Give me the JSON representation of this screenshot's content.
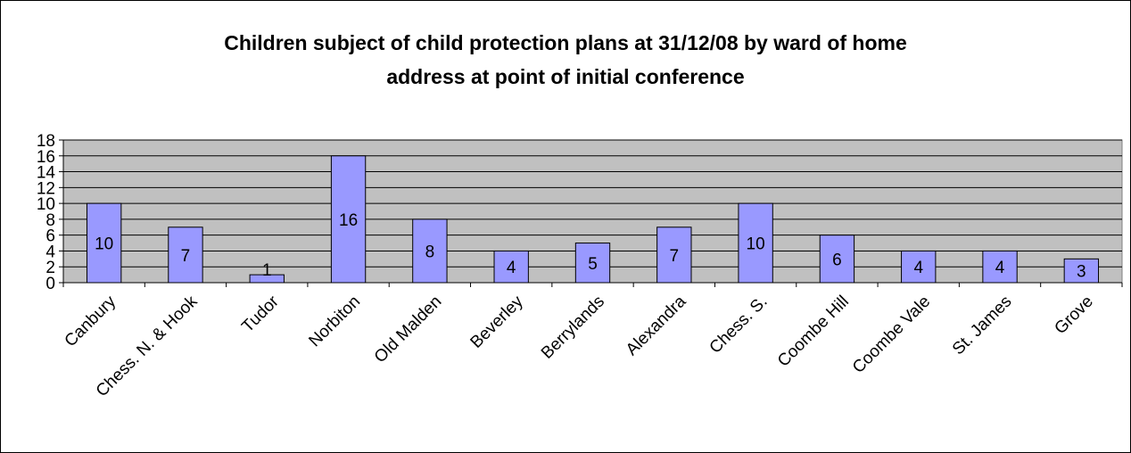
{
  "chart_data": {
    "type": "bar",
    "title_lines": [
      "Children subject of child protection plans at 31/12/08 by ward of home",
      "address at point of initial conference"
    ],
    "xlabel": "",
    "ylabel": "",
    "categories": [
      "Canbury",
      "Chess. N. & Hook",
      "Tudor",
      "Norbiton",
      "Old Malden",
      "Beverley",
      "Berrylands",
      "Alexandra",
      "Chess. S.",
      "Coombe Hill",
      "Coombe Vale",
      "St. James",
      "Grove"
    ],
    "values": [
      10,
      7,
      1,
      16,
      8,
      4,
      5,
      7,
      10,
      6,
      4,
      4,
      3
    ],
    "ylim": [
      0,
      18
    ],
    "yticks": [
      0,
      2,
      4,
      6,
      8,
      10,
      12,
      14,
      16,
      18
    ],
    "grid": true,
    "legend": "none",
    "colors": {
      "bar_fill": "#9999ff",
      "plot_background": "#c0c0c0",
      "gridline": "#000000",
      "text": "#000000"
    }
  }
}
